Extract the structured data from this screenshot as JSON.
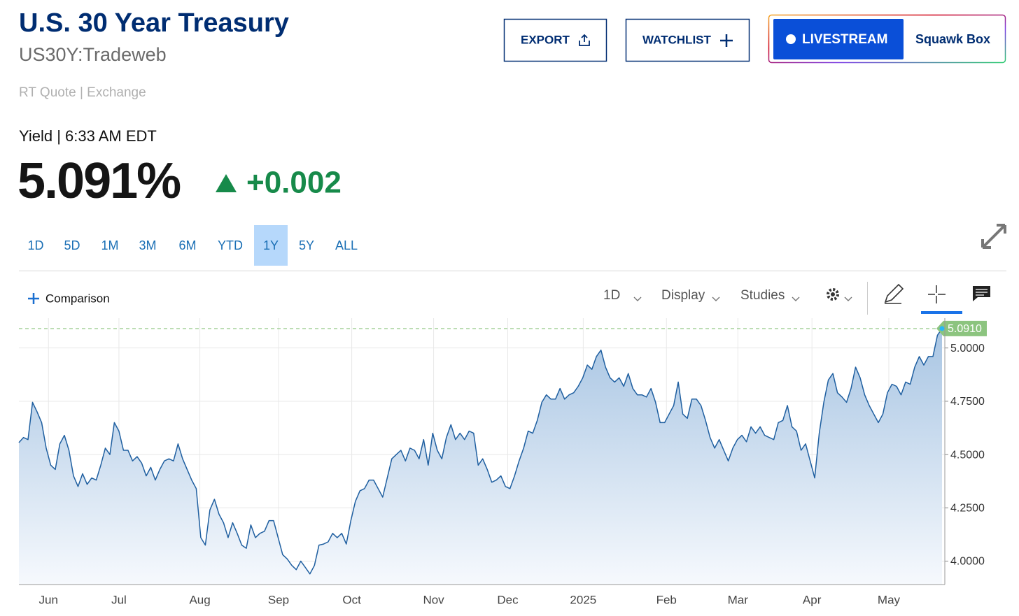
{
  "header": {
    "title": "U.S. 30 Year Treasury",
    "symbol": "US30Y:Tradeweb",
    "quote_source": "RT Quote | Exchange",
    "quote_label": "Yield | 6:33 AM EDT",
    "price": "5.091%",
    "change": "+0.002"
  },
  "buttons": {
    "export": "EXPORT",
    "watchlist": "WATCHLIST",
    "livestream": "LIVESTREAM",
    "show": "Squawk Box"
  },
  "ranges": {
    "options": [
      "1D",
      "5D",
      "1M",
      "3M",
      "6M",
      "YTD",
      "1Y",
      "5Y",
      "ALL"
    ],
    "active": 6
  },
  "toolbar": {
    "comparison": "Comparison",
    "interval": "1D",
    "display": "Display",
    "studies": "Studies"
  },
  "chart_data": {
    "type": "area",
    "color": "#1f5fa0",
    "grid": true,
    "values": [
      4.556,
      4.58,
      4.57,
      4.745,
      4.7,
      4.65,
      4.53,
      4.45,
      4.43,
      4.55,
      4.59,
      4.52,
      4.4,
      4.35,
      4.41,
      4.36,
      4.39,
      4.38,
      4.45,
      4.53,
      4.5,
      4.65,
      4.61,
      4.52,
      4.52,
      4.47,
      4.49,
      4.46,
      4.4,
      4.44,
      4.38,
      4.43,
      4.47,
      4.48,
      4.47,
      4.55,
      4.48,
      4.43,
      4.38,
      4.34,
      4.11,
      4.075,
      4.24,
      4.29,
      4.22,
      4.18,
      4.11,
      4.18,
      4.13,
      4.075,
      4.06,
      4.17,
      4.11,
      4.13,
      4.14,
      4.19,
      4.19,
      4.11,
      4.03,
      4.01,
      3.98,
      3.96,
      4.0,
      3.97,
      3.94,
      3.98,
      4.075,
      4.08,
      4.09,
      4.13,
      4.11,
      4.13,
      4.08,
      4.19,
      4.28,
      4.33,
      4.34,
      4.38,
      4.38,
      4.34,
      4.3,
      4.39,
      4.48,
      4.5,
      4.52,
      4.47,
      4.53,
      4.52,
      4.48,
      4.57,
      4.45,
      4.6,
      4.52,
      4.48,
      4.58,
      4.64,
      4.57,
      4.6,
      4.57,
      4.61,
      4.6,
      4.45,
      4.48,
      4.43,
      4.37,
      4.38,
      4.4,
      4.35,
      4.34,
      4.4,
      4.47,
      4.53,
      4.61,
      4.6,
      4.66,
      4.745,
      4.78,
      4.76,
      4.76,
      4.81,
      4.76,
      4.78,
      4.79,
      4.82,
      4.86,
      4.92,
      4.9,
      4.96,
      4.99,
      4.91,
      4.86,
      4.84,
      4.86,
      4.82,
      4.88,
      4.81,
      4.78,
      4.78,
      4.77,
      4.81,
      4.745,
      4.65,
      4.65,
      4.69,
      4.73,
      4.84,
      4.69,
      4.67,
      4.76,
      4.76,
      4.73,
      4.66,
      4.58,
      4.53,
      4.57,
      4.52,
      4.47,
      4.53,
      4.57,
      4.59,
      4.56,
      4.63,
      4.6,
      4.63,
      4.59,
      4.58,
      4.57,
      4.65,
      4.66,
      4.73,
      4.63,
      4.61,
      4.52,
      4.55,
      4.47,
      4.39,
      4.6,
      4.745,
      4.85,
      4.88,
      4.79,
      4.77,
      4.745,
      4.81,
      4.91,
      4.86,
      4.78,
      4.73,
      4.69,
      4.65,
      4.69,
      4.79,
      4.83,
      4.82,
      4.78,
      4.84,
      4.83,
      4.91,
      4.96,
      4.92,
      4.96,
      4.96,
      5.06,
      5.091
    ],
    "xlim": [
      0,
      203
    ],
    "xticks": [
      {
        "value": 6.5,
        "label": "Jun"
      },
      {
        "value": 22,
        "label": "Jul"
      },
      {
        "value": 39.8,
        "label": "Aug"
      },
      {
        "value": 57.1,
        "label": "Sep"
      },
      {
        "value": 73.2,
        "label": "Oct"
      },
      {
        "value": 91.2,
        "label": "Nov"
      },
      {
        "value": 107.5,
        "label": "Dec"
      },
      {
        "value": 124.1,
        "label": "2025"
      },
      {
        "value": 142.4,
        "label": "Feb"
      },
      {
        "value": 158.1,
        "label": "Mar"
      },
      {
        "value": 174.4,
        "label": "Apr"
      },
      {
        "value": 191.3,
        "label": "May"
      }
    ],
    "ylim": [
      3.89,
      5.14
    ],
    "yticks": [
      {
        "value": 4,
        "label": "4.0000"
      },
      {
        "value": 4.25,
        "label": "4.2500"
      },
      {
        "value": 4.5,
        "label": "4.5000"
      },
      {
        "value": 4.75,
        "label": "4.7500"
      },
      {
        "value": 5,
        "label": "5.0000"
      }
    ],
    "last_value": {
      "value": 5.091,
      "label": "5.0910"
    }
  }
}
